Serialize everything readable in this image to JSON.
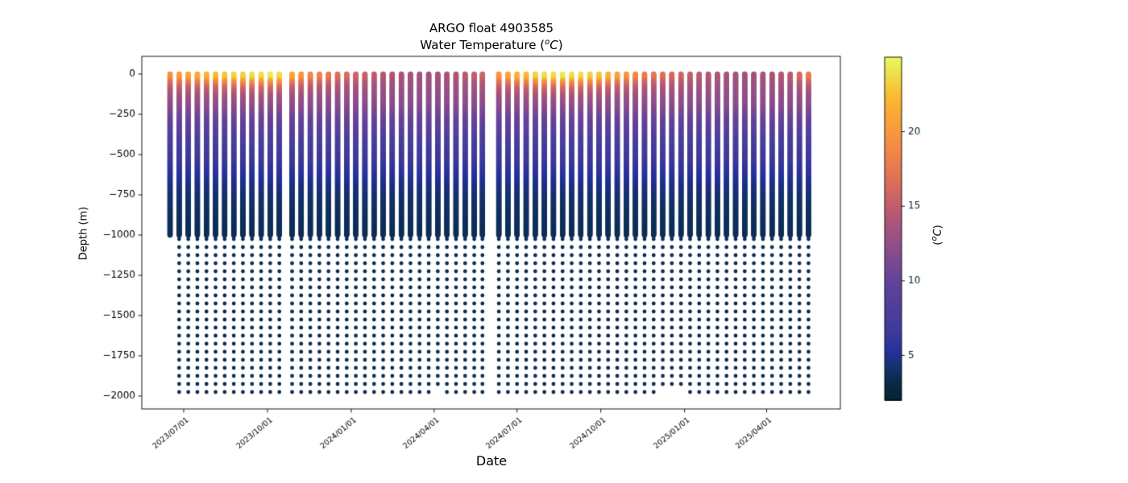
{
  "chart_data": {
    "type": "scatter",
    "title": {
      "line1": "ARGO float 4903585",
      "line2_pre": "Water Temperature (",
      "line2_sup": "o",
      "line2_it": "C",
      "line2_post": ")"
    },
    "xlabel": "Date",
    "ylabel": "Depth (m)",
    "xlim": [
      "2023-05-16",
      "2025-06-21"
    ],
    "ylim": [
      110,
      -2080
    ],
    "x_ticks": [
      {
        "label": "2023/07/01",
        "date": "2023-07-01"
      },
      {
        "label": "2023/10/01",
        "date": "2023-10-01"
      },
      {
        "label": "2024/01/01",
        "date": "2024-01-01"
      },
      {
        "label": "2024/04/01",
        "date": "2024-04-01"
      },
      {
        "label": "2024/07/01",
        "date": "2024-07-01"
      },
      {
        "label": "2024/10/01",
        "date": "2024-10-01"
      },
      {
        "label": "2025/01/01",
        "date": "2025-01-01"
      },
      {
        "label": "2025/04/01",
        "date": "2025-04-01"
      }
    ],
    "y_ticks": [
      {
        "label": "0",
        "v": 0
      },
      {
        "label": "−250",
        "v": -250
      },
      {
        "label": "−500",
        "v": -500
      },
      {
        "label": "−750",
        "v": -750
      },
      {
        "label": "−1000",
        "v": -1000
      },
      {
        "label": "−1250",
        "v": -1250
      },
      {
        "label": "−1500",
        "v": -1500
      },
      {
        "label": "−1750",
        "v": -1750
      },
      {
        "label": "−2000",
        "v": -2000
      }
    ],
    "colorbar": {
      "range": [
        2,
        25
      ],
      "ticks": [
        {
          "label": "5",
          "v": 5
        },
        {
          "label": "10",
          "v": 10
        },
        {
          "label": "15",
          "v": 15
        },
        {
          "label": "20",
          "v": 20
        }
      ],
      "label_pre": "(",
      "label_sup": "o",
      "label_it": "C",
      "label_post": ")",
      "colormap_name": "thermal",
      "stops": [
        [
          0.0,
          "#042333"
        ],
        [
          0.05,
          "#082a45"
        ],
        [
          0.09,
          "#123165"
        ],
        [
          0.14,
          "#26309b"
        ],
        [
          0.2,
          "#3d3a9b"
        ],
        [
          0.26,
          "#4b3e9c"
        ],
        [
          0.35,
          "#64439a"
        ],
        [
          0.44,
          "#8b4d8c"
        ],
        [
          0.52,
          "#ab5679"
        ],
        [
          0.57,
          "#c35e6c"
        ],
        [
          0.65,
          "#e07256"
        ],
        [
          0.74,
          "#f58a46"
        ],
        [
          0.8,
          "#f99d3c"
        ],
        [
          0.88,
          "#fbb731"
        ],
        [
          0.95,
          "#eede4a"
        ],
        [
          1.0,
          "#e7fa5a"
        ]
      ]
    },
    "sampling": {
      "shallow_step_m": 5,
      "shallow_max_m": 1000,
      "deep_start_m": 1025,
      "deep_step_m": 50,
      "deep_max_m": 1975,
      "marker_r_shallow": 3.3,
      "marker_r_deep": 2.4
    },
    "profile_model": {
      "mixed_layer_m": 30,
      "decay_m": 55,
      "permanent_profile": [
        [
          0,
          14
        ],
        [
          50,
          13.5
        ],
        [
          100,
          13
        ],
        [
          150,
          12.5
        ],
        [
          200,
          12
        ],
        [
          250,
          11
        ],
        [
          300,
          10
        ],
        [
          350,
          9.2
        ],
        [
          400,
          8.4
        ],
        [
          450,
          7.7
        ],
        [
          500,
          7.0
        ],
        [
          550,
          6.4
        ],
        [
          600,
          5.8
        ],
        [
          650,
          5.2
        ],
        [
          700,
          4.7
        ],
        [
          750,
          4.35
        ],
        [
          800,
          4.1
        ],
        [
          850,
          3.95
        ],
        [
          900,
          3.8
        ],
        [
          950,
          3.7
        ],
        [
          1000,
          3.6
        ],
        [
          2000,
          3.5
        ]
      ]
    },
    "profiles": [
      {
        "date": "2023-06-16",
        "sst": 19.5,
        "zmax": 1000
      },
      {
        "date": "2023-06-26",
        "sst": 20.5
      },
      {
        "date": "2023-07-06",
        "sst": 21
      },
      {
        "date": "2023-07-16",
        "sst": 21.5
      },
      {
        "date": "2023-07-26",
        "sst": 22
      },
      {
        "date": "2023-08-05",
        "sst": 22.5
      },
      {
        "date": "2023-08-15",
        "sst": 23
      },
      {
        "date": "2023-08-25",
        "sst": 23.5
      },
      {
        "date": "2023-09-04",
        "sst": 23.5
      },
      {
        "date": "2023-09-14",
        "sst": 24
      },
      {
        "date": "2023-09-24",
        "sst": 24
      },
      {
        "date": "2023-10-04",
        "sst": 24.5
      },
      {
        "date": "2023-10-14",
        "sst": 24
      },
      {
        "date": "2023-10-28",
        "sst": 21
      },
      {
        "date": "2023-11-07",
        "sst": 20
      },
      {
        "date": "2023-11-17",
        "sst": 19
      },
      {
        "date": "2023-11-27",
        "sst": 18.5
      },
      {
        "date": "2023-12-07",
        "sst": 18
      },
      {
        "date": "2023-12-17",
        "sst": 17
      },
      {
        "date": "2023-12-27",
        "sst": 16.5
      },
      {
        "date": "2024-01-06",
        "sst": 16
      },
      {
        "date": "2024-01-16",
        "sst": 15.5
      },
      {
        "date": "2024-01-26",
        "sst": 15
      },
      {
        "date": "2024-02-05",
        "sst": 14.5
      },
      {
        "date": "2024-02-15",
        "sst": 14.2
      },
      {
        "date": "2024-02-25",
        "sst": 14
      },
      {
        "date": "2024-03-06",
        "sst": 13.8
      },
      {
        "date": "2024-03-16",
        "sst": 13.6
      },
      {
        "date": "2024-03-26",
        "sst": 13.6
      },
      {
        "date": "2024-04-05",
        "sst": 13.8,
        "zmax": 1925
      },
      {
        "date": "2024-04-15",
        "sst": 14
      },
      {
        "date": "2024-04-25",
        "sst": 14.3
      },
      {
        "date": "2024-05-05",
        "sst": 14.8
      },
      {
        "date": "2024-05-15",
        "sst": 15.3
      },
      {
        "date": "2024-05-24",
        "sst": 16
      },
      {
        "date": "2024-06-11",
        "sst": 20
      },
      {
        "date": "2024-06-21",
        "sst": 21
      },
      {
        "date": "2024-07-01",
        "sst": 22
      },
      {
        "date": "2024-07-11",
        "sst": 22.5
      },
      {
        "date": "2024-07-21",
        "sst": 23.5
      },
      {
        "date": "2024-07-31",
        "sst": 24
      },
      {
        "date": "2024-08-10",
        "sst": 24
      },
      {
        "date": "2024-08-20",
        "sst": 24.5
      },
      {
        "date": "2024-08-30",
        "sst": 24
      },
      {
        "date": "2024-09-09",
        "sst": 24
      },
      {
        "date": "2024-09-19",
        "sst": 23.5
      },
      {
        "date": "2024-09-29",
        "sst": 23
      },
      {
        "date": "2024-10-09",
        "sst": 22
      },
      {
        "date": "2024-10-19",
        "sst": 21
      },
      {
        "date": "2024-10-29",
        "sst": 20
      },
      {
        "date": "2024-11-08",
        "sst": 19
      },
      {
        "date": "2024-11-18",
        "sst": 18
      },
      {
        "date": "2024-11-28",
        "sst": 17.5
      },
      {
        "date": "2024-12-08",
        "sst": 17,
        "zmax": 1925
      },
      {
        "date": "2024-12-18",
        "sst": 16.5,
        "zmax": 1925
      },
      {
        "date": "2024-12-28",
        "sst": 16,
        "zmax": 1925
      },
      {
        "date": "2025-01-07",
        "sst": 15.5
      },
      {
        "date": "2025-01-17",
        "sst": 15
      },
      {
        "date": "2025-01-27",
        "sst": 14.5
      },
      {
        "date": "2025-02-06",
        "sst": 14.2
      },
      {
        "date": "2025-02-16",
        "sst": 14
      },
      {
        "date": "2025-02-26",
        "sst": 13.8
      },
      {
        "date": "2025-03-08",
        "sst": 13.6
      },
      {
        "date": "2025-03-18",
        "sst": 13.5
      },
      {
        "date": "2025-03-28",
        "sst": 13.7
      },
      {
        "date": "2025-04-07",
        "sst": 14
      },
      {
        "date": "2025-04-17",
        "sst": 14.5
      },
      {
        "date": "2025-04-27",
        "sst": 15
      },
      {
        "date": "2025-05-07",
        "sst": 16.5
      },
      {
        "date": "2025-05-17",
        "sst": 18
      }
    ]
  }
}
